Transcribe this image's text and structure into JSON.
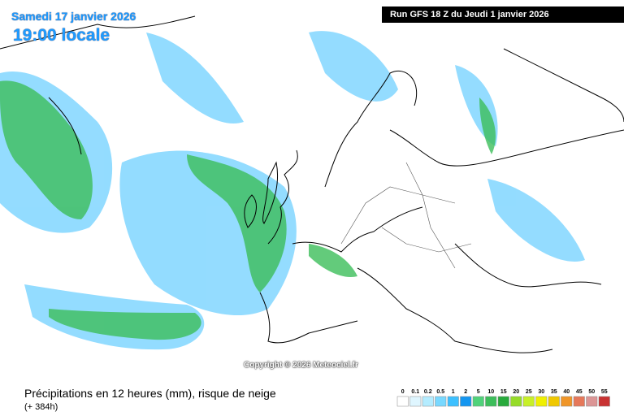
{
  "header": {
    "date": "Samedi 17 janvier 2026",
    "time": "19:00 locale",
    "run": "Run GFS 18 Z du Jeudi 1 janvier 2026"
  },
  "map": {
    "copyright": "Copyright © 2026 Meteociel.fr"
  },
  "footer": {
    "title": "Précipitations en 12 heures (mm), risque de neige",
    "lead": "(+ 384h)"
  },
  "legend": {
    "labels": [
      0,
      0.1,
      0.2,
      0.5,
      1,
      2,
      5,
      10,
      15,
      20,
      25,
      30,
      35,
      40,
      45,
      50,
      55
    ],
    "colors": [
      "#ffffff",
      "#dff6ff",
      "#b4ecff",
      "#78d8ff",
      "#3cc0ff",
      "#1496f0",
      "#50d27a",
      "#3cbe5a",
      "#28aa3c",
      "#96dc28",
      "#c8f028",
      "#f0f000",
      "#f0c800",
      "#f09628",
      "#e6785a",
      "#dc9696",
      "#c83232"
    ]
  }
}
